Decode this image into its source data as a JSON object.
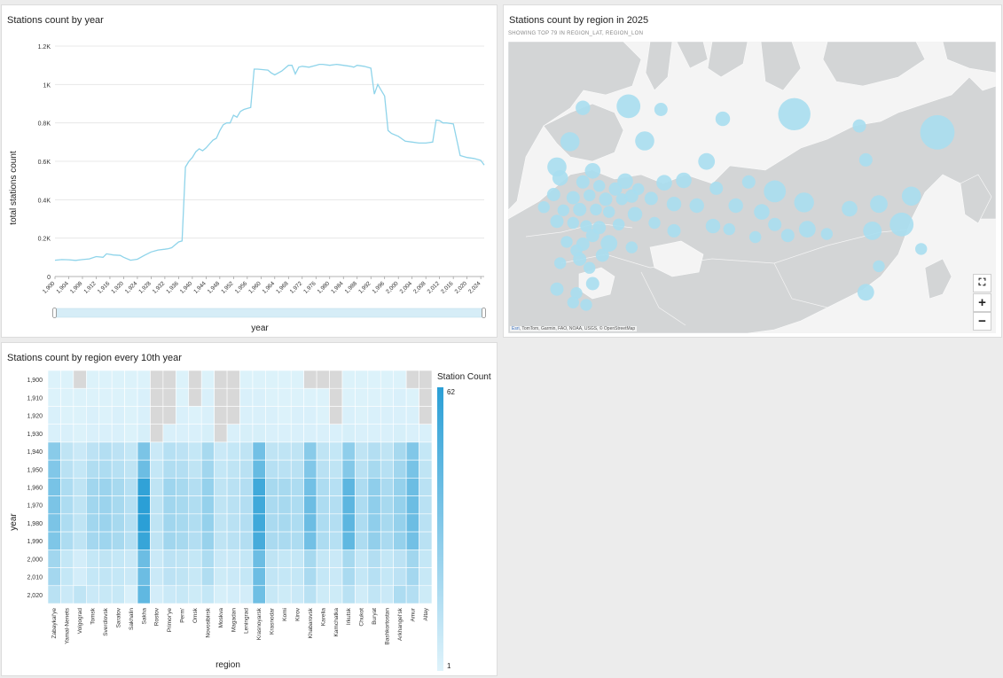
{
  "line_panel": {
    "title": "Stations count by year",
    "xlabel": "year",
    "ylabel": "total stations count"
  },
  "map_panel": {
    "title": "Stations count by region in 2025",
    "subtitle": "SHOWING TOP 79 IN REGION_LAT, REGION_LON",
    "attribution_esri": "Esri",
    "attribution_rest": ", TomTom, Garmin, FAO, NOAA, USGS, © OpenStreetMap",
    "controls": {
      "fit_glyph": "⛶",
      "zoom_in_glyph": "+",
      "zoom_out_glyph": "−"
    },
    "bubble_color": "#a8def0",
    "land_color": "#d3d5d6",
    "water_color": "#f4f4f4"
  },
  "heat_panel": {
    "title": "Stations count by region every 10th year",
    "xlabel": "region",
    "ylabel": "year",
    "legend_title": "Station Count",
    "legend_max": "62",
    "legend_min": "1"
  },
  "colors": {
    "line": "#8fd4ea",
    "heat_low": "#dff3fb",
    "heat_high": "#2b9fd6",
    "heat_missing": "#d8d8d8"
  },
  "chart_data": [
    {
      "type": "line",
      "title": "Stations count by year",
      "xlabel": "year",
      "ylabel": "total stations count",
      "ylim": [
        0,
        1200
      ],
      "y_ticks": [
        "0",
        "0.2K",
        "0.4K",
        "0.6K",
        "0.8K",
        "1K",
        "1.2K"
      ],
      "x_ticks": [
        "1,900",
        "1,904",
        "1,908",
        "1,912",
        "1,916",
        "1,920",
        "1,924",
        "1,928",
        "1,932",
        "1,936",
        "1,940",
        "1,944",
        "1,948",
        "1,952",
        "1,956",
        "1,960",
        "1,964",
        "1,968",
        "1,972",
        "1,976",
        "1,980",
        "1,984",
        "1,988",
        "1,992",
        "1,996",
        "2,000",
        "2,004",
        "2,008",
        "2,012",
        "2,016",
        "2,020",
        "2,024"
      ],
      "grid": true,
      "x": [
        1900,
        1902,
        1904,
        1906,
        1908,
        1910,
        1912,
        1914,
        1915,
        1917,
        1919,
        1920,
        1922,
        1924,
        1926,
        1928,
        1930,
        1932,
        1933,
        1934,
        1935,
        1936,
        1937,
        1938,
        1939,
        1940,
        1941,
        1942,
        1943,
        1944,
        1945,
        1946,
        1947,
        1948,
        1949,
        1950,
        1951,
        1952,
        1953,
        1954,
        1955,
        1956,
        1957,
        1958,
        1959,
        1960,
        1962,
        1963,
        1964,
        1966,
        1968,
        1969,
        1970,
        1971,
        1972,
        1974,
        1976,
        1977,
        1978,
        1980,
        1982,
        1984,
        1986,
        1987,
        1988,
        1990,
        1992,
        1993,
        1994,
        1995,
        1996,
        1997,
        1998,
        2000,
        2002,
        2004,
        2006,
        2008,
        2010,
        2011,
        2012,
        2013,
        2014,
        2016,
        2018,
        2019,
        2020,
        2022,
        2024,
        2025
      ],
      "y": [
        85,
        88,
        87,
        84,
        88,
        92,
        104,
        100,
        118,
        112,
        110,
        100,
        85,
        90,
        110,
        128,
        138,
        142,
        145,
        150,
        165,
        180,
        185,
        570,
        600,
        620,
        650,
        665,
        655,
        670,
        690,
        710,
        720,
        760,
        790,
        800,
        800,
        840,
        830,
        860,
        870,
        875,
        880,
        1080,
        1080,
        1078,
        1075,
        1060,
        1050,
        1070,
        1100,
        1100,
        1055,
        1090,
        1095,
        1090,
        1100,
        1105,
        1105,
        1100,
        1105,
        1100,
        1095,
        1090,
        1100,
        1095,
        1085,
        950,
        1000,
        970,
        940,
        760,
        745,
        730,
        705,
        700,
        695,
        695,
        700,
        815,
        812,
        800,
        800,
        795,
        630,
        625,
        620,
        615,
        605,
        580
      ]
    },
    {
      "type": "scatter",
      "title": "Stations count by region in 2025",
      "x_label_axis": "longitude",
      "y_label_axis": "latitude",
      "points": [
        {
          "lon": 45,
          "lat": 68.6,
          "count": 4
        },
        {
          "lon": 59,
          "lat": 68.8,
          "count": 16
        },
        {
          "lon": 69,
          "lat": 68.4,
          "count": 3
        },
        {
          "lon": 88,
          "lat": 67.2,
          "count": 4
        },
        {
          "lon": 110,
          "lat": 67.8,
          "count": 34
        },
        {
          "lon": 130,
          "lat": 66.3,
          "count": 3
        },
        {
          "lon": 154,
          "lat": 65.5,
          "count": 40
        },
        {
          "lon": 41,
          "lat": 64.3,
          "count": 9
        },
        {
          "lon": 64,
          "lat": 64.4,
          "count": 9
        },
        {
          "lon": 83,
          "lat": 61.8,
          "count": 6
        },
        {
          "lon": 37,
          "lat": 61.1,
          "count": 9
        },
        {
          "lon": 48,
          "lat": 60.6,
          "count": 5
        },
        {
          "lon": 58,
          "lat": 59.3,
          "count": 5
        },
        {
          "lon": 70,
          "lat": 59.1,
          "count": 5
        },
        {
          "lon": 76,
          "lat": 59.4,
          "count": 5
        },
        {
          "lon": 86,
          "lat": 58.4,
          "count": 3
        },
        {
          "lon": 96,
          "lat": 59.2,
          "count": 3
        },
        {
          "lon": 38,
          "lat": 59.7,
          "count": 5
        },
        {
          "lon": 45,
          "lat": 59.2,
          "count": 3
        },
        {
          "lon": 50,
          "lat": 58.7,
          "count": 2
        },
        {
          "lon": 55,
          "lat": 58.3,
          "count": 3
        },
        {
          "lon": 62,
          "lat": 58.3,
          "count": 2
        },
        {
          "lon": 104,
          "lat": 58.0,
          "count": 13
        },
        {
          "lon": 132,
          "lat": 62.0,
          "count": 3
        },
        {
          "lon": 36,
          "lat": 57.6,
          "count": 3
        },
        {
          "lon": 42,
          "lat": 57.2,
          "count": 3
        },
        {
          "lon": 47,
          "lat": 57.5,
          "count": 2
        },
        {
          "lon": 52,
          "lat": 57.0,
          "count": 3
        },
        {
          "lon": 57,
          "lat": 57.0,
          "count": 2
        },
        {
          "lon": 60,
          "lat": 57.4,
          "count": 3
        },
        {
          "lon": 66,
          "lat": 57.1,
          "count": 3
        },
        {
          "lon": 73,
          "lat": 56.4,
          "count": 4
        },
        {
          "lon": 80,
          "lat": 56.2,
          "count": 4
        },
        {
          "lon": 92,
          "lat": 56.2,
          "count": 4
        },
        {
          "lon": 100,
          "lat": 55.4,
          "count": 5
        },
        {
          "lon": 113,
          "lat": 56.6,
          "count": 10
        },
        {
          "lon": 127,
          "lat": 55.8,
          "count": 5
        },
        {
          "lon": 136,
          "lat": 56.4,
          "count": 7
        },
        {
          "lon": 146,
          "lat": 57.4,
          "count": 9
        },
        {
          "lon": 33,
          "lat": 56.0,
          "count": 2
        },
        {
          "lon": 39,
          "lat": 55.6,
          "count": 2
        },
        {
          "lon": 44,
          "lat": 55.7,
          "count": 3
        },
        {
          "lon": 49,
          "lat": 55.7,
          "count": 2
        },
        {
          "lon": 53,
          "lat": 55.4,
          "count": 2
        },
        {
          "lon": 61,
          "lat": 55.1,
          "count": 4
        },
        {
          "lon": 85,
          "lat": 53.6,
          "count": 4
        },
        {
          "lon": 114,
          "lat": 53.2,
          "count": 6
        },
        {
          "lon": 104,
          "lat": 53.8,
          "count": 3
        },
        {
          "lon": 37,
          "lat": 54.2,
          "count": 3
        },
        {
          "lon": 42,
          "lat": 54.0,
          "count": 2
        },
        {
          "lon": 46,
          "lat": 53.6,
          "count": 2
        },
        {
          "lon": 50,
          "lat": 53.4,
          "count": 3
        },
        {
          "lon": 56,
          "lat": 53.8,
          "count": 2
        },
        {
          "lon": 67,
          "lat": 54.0,
          "count": 2
        },
        {
          "lon": 73,
          "lat": 53.0,
          "count": 3
        },
        {
          "lon": 90,
          "lat": 53.2,
          "count": 2
        },
        {
          "lon": 98,
          "lat": 52.2,
          "count": 2
        },
        {
          "lon": 108,
          "lat": 52.4,
          "count": 3
        },
        {
          "lon": 120,
          "lat": 52.6,
          "count": 2
        },
        {
          "lon": 134,
          "lat": 53.0,
          "count": 8
        },
        {
          "lon": 143,
          "lat": 53.8,
          "count": 16
        },
        {
          "lon": 40,
          "lat": 51.6,
          "count": 2
        },
        {
          "lon": 45,
          "lat": 51.3,
          "count": 3
        },
        {
          "lon": 48,
          "lat": 52.4,
          "count": 3
        },
        {
          "lon": 53,
          "lat": 51.4,
          "count": 6
        },
        {
          "lon": 60,
          "lat": 50.9,
          "count": 2
        },
        {
          "lon": 43,
          "lat": 50.5,
          "count": 2
        },
        {
          "lon": 38,
          "lat": 48.9,
          "count": 2
        },
        {
          "lon": 44,
          "lat": 49.4,
          "count": 3
        },
        {
          "lon": 47,
          "lat": 48.3,
          "count": 2
        },
        {
          "lon": 51,
          "lat": 49.9,
          "count": 3
        },
        {
          "lon": 136,
          "lat": 48.5,
          "count": 2
        },
        {
          "lon": 149,
          "lat": 50.7,
          "count": 2
        },
        {
          "lon": 37,
          "lat": 45.6,
          "count": 3
        },
        {
          "lon": 43,
          "lat": 45.1,
          "count": 2
        },
        {
          "lon": 48,
          "lat": 46.3,
          "count": 3
        },
        {
          "lon": 46,
          "lat": 43.6,
          "count": 2
        },
        {
          "lon": 42,
          "lat": 43.9,
          "count": 2
        },
        {
          "lon": 132,
          "lat": 45.2,
          "count": 6
        }
      ]
    },
    {
      "type": "heatmap",
      "title": "Stations count by region every 10th year",
      "xlabel": "region",
      "ylabel": "year",
      "legend": {
        "title": "Station Count",
        "min": 1,
        "max": 62
      },
      "x": [
        "Zabaykal'ye",
        "Yamal-Nenets",
        "Volgograd",
        "Tomsk",
        "Sverdlovsk",
        "Saratov",
        "Sakhalin",
        "Sakha",
        "Rostov",
        "Primor'ye",
        "Perm'",
        "Omsk",
        "Novosibirsk",
        "Moskva",
        "Magadan",
        "Leningrad",
        "Krasnoyarsk",
        "Krasnodar",
        "Komi",
        "Kirov",
        "Khabarovsk",
        "Karelia",
        "Kamchatka",
        "Irkutsk",
        "Chukot",
        "Buryat",
        "Bashkortostan",
        "Arkhangel'sk",
        "Amur",
        "Altay"
      ],
      "y": [
        "1,900",
        "1,910",
        "1,920",
        "1,930",
        "1,940",
        "1,950",
        "1,960",
        "1,970",
        "1,980",
        "1,990",
        "2,000",
        "2,010",
        "2,020"
      ],
      "values": [
        [
          2,
          2,
          null,
          2,
          2,
          2,
          2,
          2,
          null,
          null,
          2,
          null,
          2,
          null,
          null,
          2,
          2,
          2,
          2,
          2,
          null,
          null,
          null,
          2,
          2,
          2,
          2,
          2,
          null,
          null
        ],
        [
          2,
          2,
          2,
          2,
          2,
          2,
          2,
          3,
          null,
          null,
          2,
          null,
          3,
          null,
          null,
          3,
          3,
          2,
          2,
          2,
          2,
          2,
          null,
          2,
          2,
          2,
          2,
          3,
          2,
          null
        ],
        [
          3,
          2,
          2,
          3,
          2,
          3,
          2,
          3,
          null,
          null,
          3,
          2,
          3,
          null,
          null,
          3,
          3,
          3,
          2,
          3,
          3,
          2,
          null,
          3,
          2,
          3,
          3,
          3,
          3,
          null
        ],
        [
          3,
          3,
          2,
          3,
          3,
          3,
          2,
          4,
          null,
          3,
          3,
          3,
          4,
          null,
          3,
          4,
          4,
          3,
          3,
          3,
          3,
          3,
          3,
          4,
          3,
          3,
          3,
          4,
          3,
          3
        ],
        [
          30,
          12,
          8,
          13,
          16,
          13,
          10,
          35,
          8,
          15,
          13,
          10,
          20,
          8,
          10,
          12,
          38,
          12,
          12,
          12,
          30,
          12,
          10,
          28,
          12,
          16,
          12,
          20,
          33,
          10
        ],
        [
          33,
          14,
          10,
          17,
          18,
          15,
          12,
          40,
          10,
          17,
          16,
          12,
          22,
          10,
          12,
          14,
          42,
          15,
          14,
          14,
          33,
          14,
          12,
          32,
          14,
          20,
          15,
          22,
          36,
          12
        ],
        [
          36,
          18,
          12,
          22,
          24,
          20,
          15,
          60,
          12,
          23,
          20,
          16,
          26,
          12,
          14,
          16,
          55,
          20,
          20,
          18,
          38,
          18,
          15,
          45,
          18,
          28,
          19,
          26,
          40,
          14
        ],
        [
          35,
          18,
          12,
          22,
          24,
          20,
          15,
          62,
          12,
          22,
          20,
          17,
          26,
          12,
          14,
          16,
          55,
          19,
          20,
          18,
          40,
          18,
          16,
          45,
          18,
          28,
          20,
          26,
          40,
          14
        ],
        [
          35,
          18,
          12,
          22,
          24,
          20,
          15,
          62,
          12,
          22,
          20,
          17,
          26,
          12,
          14,
          16,
          55,
          19,
          20,
          18,
          40,
          18,
          16,
          45,
          18,
          28,
          20,
          26,
          40,
          14
        ],
        [
          34,
          18,
          12,
          21,
          23,
          20,
          15,
          58,
          12,
          22,
          20,
          16,
          25,
          12,
          14,
          16,
          53,
          19,
          19,
          18,
          38,
          18,
          15,
          44,
          18,
          27,
          19,
          26,
          38,
          14
        ],
        [
          22,
          10,
          5,
          10,
          12,
          10,
          8,
          40,
          8,
          13,
          12,
          10,
          18,
          8,
          8,
          10,
          40,
          12,
          10,
          10,
          20,
          10,
          8,
          20,
          10,
          16,
          10,
          13,
          22,
          10
        ],
        [
          21,
          10,
          5,
          10,
          11,
          10,
          8,
          40,
          8,
          13,
          12,
          9,
          17,
          7,
          8,
          10,
          40,
          11,
          10,
          10,
          19,
          10,
          8,
          19,
          10,
          15,
          10,
          13,
          21,
          9
        ],
        [
          14,
          8,
          12,
          8,
          9,
          9,
          3,
          44,
          5,
          8,
          9,
          7,
          10,
          4,
          5,
          5,
          39,
          9,
          7,
          8,
          14,
          7,
          7,
          14,
          6,
          11,
          8,
          18,
          16,
          7
        ]
      ]
    }
  ]
}
